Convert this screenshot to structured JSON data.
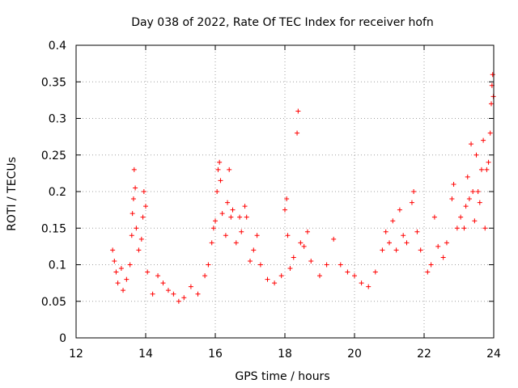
{
  "chart_data": {
    "type": "scatter",
    "title": "Day 038 of 2022, Rate Of TEC Index for receiver hofn",
    "xlabel": "GPS time / hours",
    "ylabel": "ROTI / TECUs",
    "xlim": [
      12,
      24
    ],
    "ylim": [
      0,
      0.4
    ],
    "xticks": [
      12,
      14,
      16,
      18,
      20,
      22,
      24
    ],
    "xtick_labels": [
      "12",
      "14",
      "16",
      "18",
      "20",
      "22",
      "24"
    ],
    "yticks": [
      0,
      0.05,
      0.1,
      0.15,
      0.2,
      0.25,
      0.3,
      0.35,
      0.4
    ],
    "ytick_labels": [
      "0",
      "0.05",
      "0.1",
      "0.15",
      "0.2",
      "0.25",
      "0.3",
      "0.35",
      "0.4"
    ],
    "grid": true,
    "marker": "+",
    "series": [
      {
        "name": "ROTI",
        "color": "#ff0000",
        "points": [
          [
            13.05,
            0.12
          ],
          [
            13.1,
            0.105
          ],
          [
            13.15,
            0.09
          ],
          [
            13.2,
            0.075
          ],
          [
            13.3,
            0.095
          ],
          [
            13.35,
            0.065
          ],
          [
            13.45,
            0.08
          ],
          [
            13.55,
            0.1
          ],
          [
            13.6,
            0.14
          ],
          [
            13.62,
            0.17
          ],
          [
            13.65,
            0.19
          ],
          [
            13.67,
            0.23
          ],
          [
            13.7,
            0.205
          ],
          [
            13.73,
            0.15
          ],
          [
            13.8,
            0.12
          ],
          [
            13.88,
            0.135
          ],
          [
            13.92,
            0.165
          ],
          [
            13.95,
            0.2
          ],
          [
            14.0,
            0.18
          ],
          [
            14.05,
            0.09
          ],
          [
            14.2,
            0.06
          ],
          [
            14.35,
            0.085
          ],
          [
            14.5,
            0.075
          ],
          [
            14.65,
            0.065
          ],
          [
            14.8,
            0.06
          ],
          [
            14.95,
            0.05
          ],
          [
            15.1,
            0.055
          ],
          [
            15.3,
            0.07
          ],
          [
            15.5,
            0.06
          ],
          [
            15.7,
            0.085
          ],
          [
            15.8,
            0.1
          ],
          [
            15.9,
            0.13
          ],
          [
            15.95,
            0.15
          ],
          [
            16.0,
            0.16
          ],
          [
            16.05,
            0.2
          ],
          [
            16.08,
            0.23
          ],
          [
            16.12,
            0.24
          ],
          [
            16.15,
            0.215
          ],
          [
            16.2,
            0.17
          ],
          [
            16.3,
            0.14
          ],
          [
            16.35,
            0.185
          ],
          [
            16.4,
            0.23
          ],
          [
            16.45,
            0.165
          ],
          [
            16.5,
            0.175
          ],
          [
            16.6,
            0.13
          ],
          [
            16.7,
            0.165
          ],
          [
            16.75,
            0.145
          ],
          [
            16.85,
            0.18
          ],
          [
            16.9,
            0.165
          ],
          [
            17.0,
            0.105
          ],
          [
            17.1,
            0.12
          ],
          [
            17.2,
            0.14
          ],
          [
            17.3,
            0.1
          ],
          [
            17.5,
            0.08
          ],
          [
            17.7,
            0.075
          ],
          [
            17.9,
            0.085
          ],
          [
            18.0,
            0.175
          ],
          [
            18.05,
            0.19
          ],
          [
            18.08,
            0.14
          ],
          [
            18.15,
            0.095
          ],
          [
            18.25,
            0.11
          ],
          [
            18.35,
            0.28
          ],
          [
            18.38,
            0.31
          ],
          [
            18.45,
            0.13
          ],
          [
            18.55,
            0.125
          ],
          [
            18.65,
            0.145
          ],
          [
            18.75,
            0.105
          ],
          [
            19.0,
            0.085
          ],
          [
            19.2,
            0.1
          ],
          [
            19.4,
            0.135
          ],
          [
            19.6,
            0.1
          ],
          [
            19.8,
            0.09
          ],
          [
            20.0,
            0.085
          ],
          [
            20.2,
            0.075
          ],
          [
            20.4,
            0.07
          ],
          [
            20.6,
            0.09
          ],
          [
            20.8,
            0.12
          ],
          [
            20.9,
            0.145
          ],
          [
            21.0,
            0.13
          ],
          [
            21.1,
            0.16
          ],
          [
            21.2,
            0.12
          ],
          [
            21.3,
            0.175
          ],
          [
            21.4,
            0.14
          ],
          [
            21.5,
            0.13
          ],
          [
            21.65,
            0.185
          ],
          [
            21.7,
            0.2
          ],
          [
            21.8,
            0.145
          ],
          [
            21.9,
            0.12
          ],
          [
            22.1,
            0.09
          ],
          [
            22.2,
            0.1
          ],
          [
            22.3,
            0.165
          ],
          [
            22.4,
            0.125
          ],
          [
            22.55,
            0.11
          ],
          [
            22.65,
            0.13
          ],
          [
            22.8,
            0.19
          ],
          [
            22.85,
            0.21
          ],
          [
            22.95,
            0.15
          ],
          [
            23.05,
            0.165
          ],
          [
            23.15,
            0.15
          ],
          [
            23.2,
            0.18
          ],
          [
            23.25,
            0.22
          ],
          [
            23.3,
            0.19
          ],
          [
            23.35,
            0.265
          ],
          [
            23.4,
            0.2
          ],
          [
            23.45,
            0.16
          ],
          [
            23.5,
            0.25
          ],
          [
            23.55,
            0.2
          ],
          [
            23.6,
            0.185
          ],
          [
            23.65,
            0.23
          ],
          [
            23.7,
            0.27
          ],
          [
            23.75,
            0.15
          ],
          [
            23.8,
            0.23
          ],
          [
            23.85,
            0.24
          ],
          [
            23.9,
            0.28
          ],
          [
            23.93,
            0.32
          ],
          [
            23.95,
            0.345
          ],
          [
            23.97,
            0.36
          ],
          [
            23.99,
            0.33
          ]
        ]
      }
    ]
  }
}
